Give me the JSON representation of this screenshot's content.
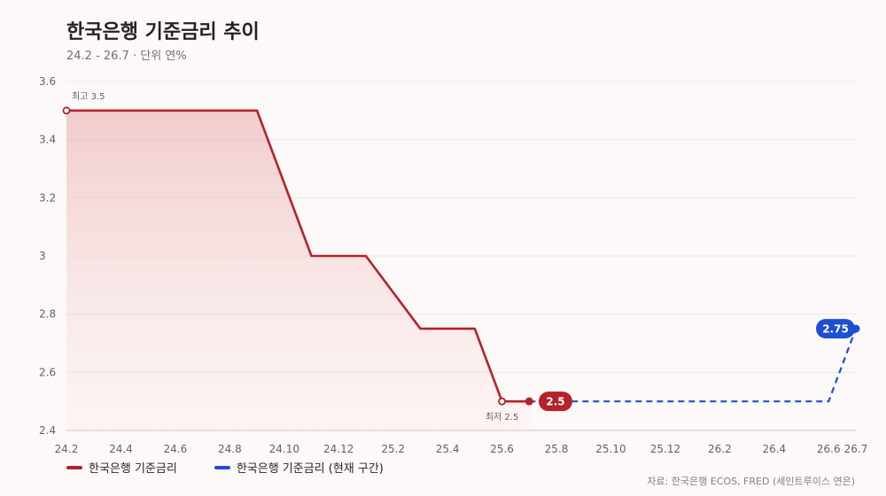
{
  "header": {
    "title": "한국은행 기준금리 추이",
    "subtitle": "24.2 - 26.7 · 단위 연%"
  },
  "legend": {
    "items": [
      {
        "label": "한국은행 기준금리",
        "color": "#b5222a"
      },
      {
        "label": "한국은행 기준금리 (현재 구간)",
        "color": "#1f4fd1"
      }
    ]
  },
  "source": "자료: 한국은행 ECOS, FRED (세인트루이스 연은)",
  "chart_data": {
    "type": "line",
    "title": "한국은행 기준금리 추이",
    "xlabel": "",
    "ylabel": "",
    "ylim": [
      2.4,
      3.6
    ],
    "yticks": [
      "2.4",
      "2.6",
      "2.8",
      "3",
      "3.2",
      "3.4",
      "3.6"
    ],
    "xticks": [
      "24.2",
      "24.4",
      "24.6",
      "24.8",
      "24.10",
      "24.12",
      "25.2",
      "25.4",
      "25.6",
      "25.8",
      "25.10",
      "25.12",
      "26.2",
      "26.4",
      "26.6",
      "26.7"
    ],
    "grid": true,
    "legend_position": "bottom-left",
    "series": [
      {
        "name": "한국은행 기준금리",
        "color": "#b5222a",
        "style": "solid",
        "points": [
          {
            "x": "24.2",
            "y": 3.5
          },
          {
            "x": "24.9",
            "y": 3.5
          },
          {
            "x": "24.11",
            "y": 3.0
          },
          {
            "x": "25.1",
            "y": 3.0
          },
          {
            "x": "25.3",
            "y": 2.75
          },
          {
            "x": "25.5",
            "y": 2.75
          },
          {
            "x": "25.6",
            "y": 2.5
          },
          {
            "x": "25.7",
            "y": 2.5
          }
        ],
        "end_label": "2.5"
      },
      {
        "name": "한국은행 기준금리 (현재 구간)",
        "color": "#1f4fd1",
        "style": "dashed",
        "points": [
          {
            "x": "25.7",
            "y": 2.5
          },
          {
            "x": "26.6",
            "y": 2.5
          },
          {
            "x": "26.7",
            "y": 2.75
          }
        ],
        "end_label": "2.75"
      }
    ],
    "annotations": [
      {
        "text": "최고 3.5",
        "x": "24.2",
        "y": 3.5
      },
      {
        "text": "최저 2.5",
        "x": "25.6",
        "y": 2.5
      }
    ]
  }
}
